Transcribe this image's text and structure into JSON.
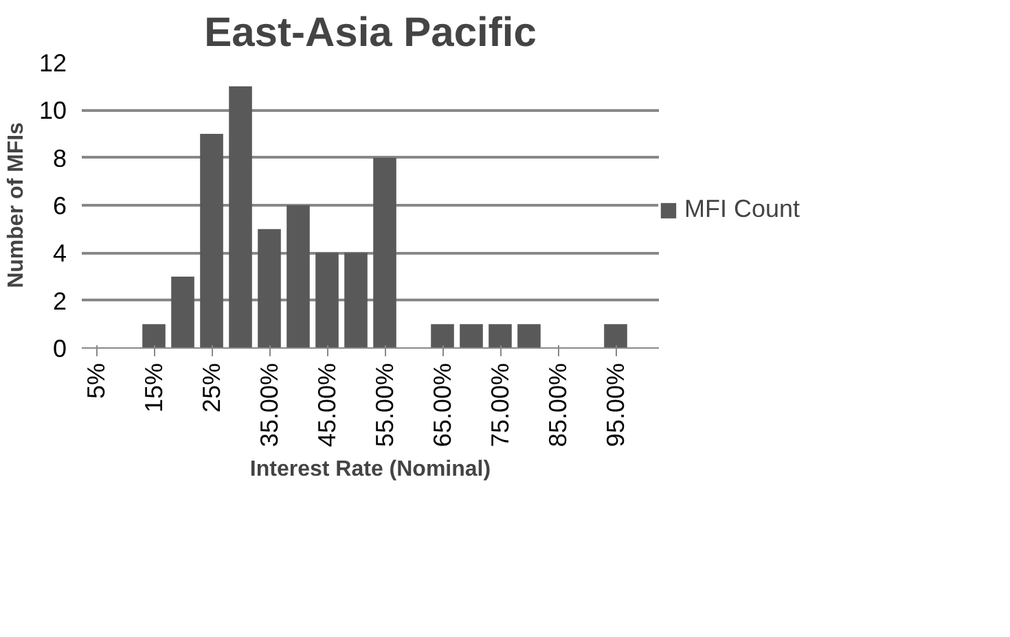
{
  "chart_data": {
    "type": "bar",
    "title": "East-Asia Pacific",
    "xlabel": "Interest Rate (Nominal)",
    "ylabel": "Number of MFIs",
    "categories": [
      "5%",
      null,
      "15%",
      null,
      "25%",
      null,
      "35.00%",
      null,
      "45.00%",
      null,
      "55.00%",
      null,
      "65.00%",
      null,
      "75.00%",
      null,
      "85.00%",
      null,
      "95.00%",
      null
    ],
    "series": [
      {
        "name": "MFI Count",
        "color": "#595959",
        "values": [
          0,
          0,
          1,
          3,
          9,
          11,
          5,
          6,
          4,
          4,
          8,
          0,
          1,
          1,
          1,
          1,
          0,
          0,
          1,
          0
        ]
      }
    ],
    "ylim": [
      0,
      12
    ],
    "yticks": [
      0,
      2,
      4,
      6,
      8,
      10,
      12
    ],
    "grid": "y",
    "legend": "right"
  }
}
